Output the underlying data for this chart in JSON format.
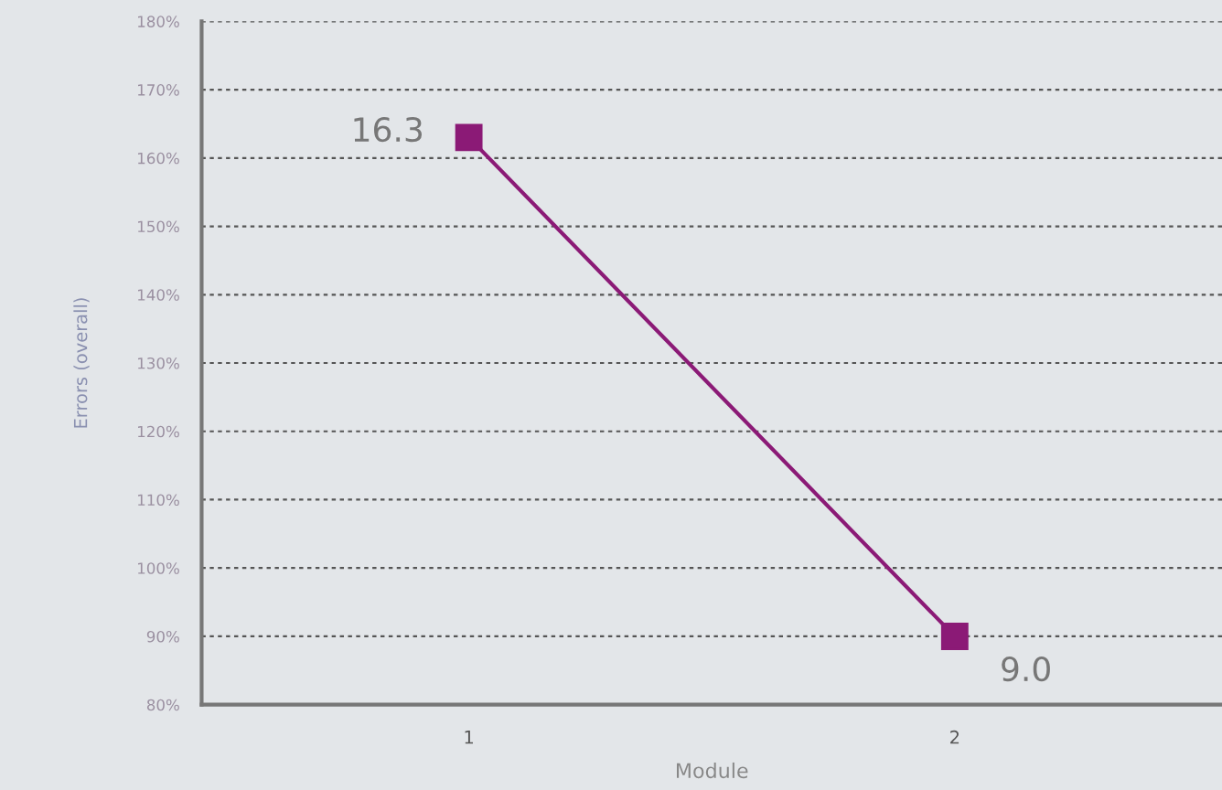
{
  "chart_data": {
    "type": "line",
    "xlabel": "Module",
    "ylabel": "Errors (overall)",
    "categories": [
      "1",
      "2"
    ],
    "series": [
      {
        "color": "#8b1a76",
        "values": [
          163,
          90
        ]
      }
    ],
    "annotations": [
      {
        "text": "16.3",
        "x": "1",
        "y": 163
      },
      {
        "text": "9.0",
        "x": "2",
        "y": 90
      }
    ],
    "ylim": [
      80,
      180
    ],
    "yticks": [
      {
        "value": 80,
        "label": "80%"
      },
      {
        "value": 90,
        "label": "90%"
      },
      {
        "value": 100,
        "label": "100%"
      },
      {
        "value": 110,
        "label": "110%"
      },
      {
        "value": 120,
        "label": "120%"
      },
      {
        "value": 130,
        "label": "130%"
      },
      {
        "value": 140,
        "label": "140%"
      },
      {
        "value": 150,
        "label": "150%"
      },
      {
        "value": 160,
        "label": "160%"
      },
      {
        "value": 170,
        "label": "170%"
      },
      {
        "value": 180,
        "label": "180%"
      }
    ],
    "grid": "y",
    "marker": "square",
    "line_style": "solid",
    "legend": false
  }
}
